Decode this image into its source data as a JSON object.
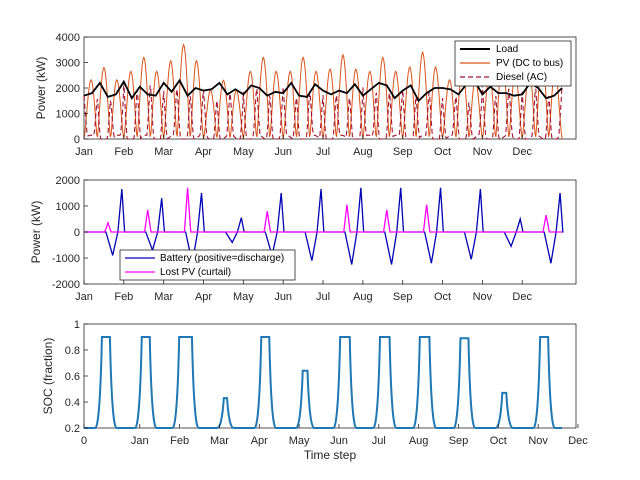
{
  "chart_data": [
    {
      "type": "line",
      "ylabel": "Power (kW)",
      "xlabel": "",
      "ylim": [
        0,
        4000
      ],
      "yticks": [
        "0",
        "1000",
        "2000",
        "3000",
        "4000"
      ],
      "xtick_labels": [
        "Jan",
        "Feb",
        "Mar",
        "Apr",
        "May",
        "Jun",
        "Jul",
        "Aug",
        "Sep",
        "Oct",
        "Nov",
        "Dec"
      ],
      "legend_position": "top-right",
      "grid": false,
      "series": [
        {
          "name": "Load",
          "color": "#000000",
          "style": "solid",
          "values": [
            1700,
            1800,
            2200,
            1650,
            1750,
            2250,
            1600,
            2050,
            1750,
            1700,
            2200,
            1850,
            2300,
            1700,
            2000,
            1900,
            1950,
            2200,
            1750,
            1950,
            1750,
            2100,
            2000,
            1700,
            1850,
            1800,
            2200,
            1700,
            1650,
            2150,
            1900,
            1750,
            1900,
            1800,
            2150,
            1700,
            1950,
            2200,
            2100,
            1600,
            1900,
            2100,
            1500,
            1800,
            2000,
            2000,
            1950,
            1750,
            2150,
            2300,
            1750,
            2050,
            1800,
            1800,
            1700,
            1750,
            2200,
            2000,
            1600,
            1700,
            2000
          ]
        },
        {
          "name": "PV (DC to bus)",
          "color": "#d95319",
          "style": "solid",
          "peaks": [
            2800,
            3200,
            3700,
            2300,
            3200,
            3200,
            3300,
            3200,
            3400,
            2800,
            3100,
            3200
          ],
          "months": [
            0.9,
            1.9,
            2.9,
            3.9,
            4.9,
            5.9,
            6.9,
            7.9,
            8.9,
            9.9,
            10.9,
            11.9
          ]
        },
        {
          "name": "Diesel (AC)",
          "color": "#a2142f",
          "style": "dashed",
          "base": [
            1700,
            2200,
            2000,
            1800,
            2000,
            1900,
            1800,
            2000,
            1900,
            1700,
            2000,
            2000
          ]
        }
      ]
    },
    {
      "type": "line",
      "ylabel": "Power (kW)",
      "xlabel": "",
      "ylim": [
        -2000,
        2000
      ],
      "yticks": [
        "-2000",
        "-1000",
        "0",
        "1000",
        "2000"
      ],
      "xtick_labels": [
        "Jan",
        "Feb",
        "Mar",
        "Apr",
        "May",
        "Jun",
        "Jul",
        "Aug",
        "Sep",
        "Oct",
        "Nov",
        "Dec"
      ],
      "legend_position": "bottom-left",
      "grid": false,
      "series": [
        {
          "name": "Battery (positive=discharge)",
          "color": "#0000b4",
          "style": "solid",
          "events": [
            {
              "x": 0.9,
              "neg": -900,
              "pos": 1650
            },
            {
              "x": 1.9,
              "neg": -700,
              "pos": 1300
            },
            {
              "x": 2.9,
              "neg": -1200,
              "pos": 1500
            },
            {
              "x": 3.9,
              "neg": -400,
              "pos": 550
            },
            {
              "x": 4.9,
              "neg": -900,
              "pos": 1500
            },
            {
              "x": 5.9,
              "neg": -1100,
              "pos": 1650
            },
            {
              "x": 6.9,
              "neg": -1250,
              "pos": 1700
            },
            {
              "x": 7.9,
              "neg": -1250,
              "pos": 1700
            },
            {
              "x": 8.9,
              "neg": -1200,
              "pos": 1700
            },
            {
              "x": 9.9,
              "neg": -1050,
              "pos": 1650
            },
            {
              "x": 10.9,
              "neg": -550,
              "pos": 500
            },
            {
              "x": 11.9,
              "neg": -1200,
              "pos": 1500
            }
          ]
        },
        {
          "name": "Lost PV (curtail)",
          "color": "#ff00ff",
          "style": "solid",
          "spikes": [
            {
              "x": 0.6,
              "v": 350
            },
            {
              "x": 1.6,
              "v": 850
            },
            {
              "x": 2.6,
              "v": 1700
            },
            {
              "x": 4.6,
              "v": 800
            },
            {
              "x": 6.6,
              "v": 1050
            },
            {
              "x": 7.6,
              "v": 850
            },
            {
              "x": 8.6,
              "v": 1050
            },
            {
              "x": 11.6,
              "v": 650
            }
          ]
        }
      ]
    },
    {
      "type": "line",
      "ylabel": "SOC (fraction)",
      "xlabel": "Time step",
      "ylim": [
        0.2,
        1
      ],
      "yticks": [
        "0.2",
        "0.4",
        "0.6",
        "0.8",
        "1"
      ],
      "xtick_labels": [
        "0",
        "Jan",
        "Feb",
        "Mar",
        "Apr",
        "May",
        "Jun",
        "Jul",
        "Aug",
        "Sep",
        "Oct",
        "Nov",
        "Dec"
      ],
      "grid": false,
      "series": [
        {
          "name": "SOC",
          "color": "#1f77b4",
          "style": "solid",
          "humps": [
            {
              "x": 0.55,
              "w": 0.3,
              "v": 0.9
            },
            {
              "x": 1.55,
              "w": 0.3,
              "v": 0.9
            },
            {
              "x": 2.55,
              "w": 0.42,
              "v": 0.9
            },
            {
              "x": 3.55,
              "w": 0.18,
              "v": 0.43
            },
            {
              "x": 4.55,
              "w": 0.3,
              "v": 0.9
            },
            {
              "x": 5.55,
              "w": 0.22,
              "v": 0.64
            },
            {
              "x": 6.55,
              "w": 0.34,
              "v": 0.9
            },
            {
              "x": 7.55,
              "w": 0.34,
              "v": 0.9
            },
            {
              "x": 8.55,
              "w": 0.34,
              "v": 0.9
            },
            {
              "x": 9.55,
              "w": 0.3,
              "v": 0.89
            },
            {
              "x": 10.55,
              "w": 0.2,
              "v": 0.47
            },
            {
              "x": 11.55,
              "w": 0.3,
              "v": 0.9
            }
          ]
        }
      ]
    }
  ]
}
